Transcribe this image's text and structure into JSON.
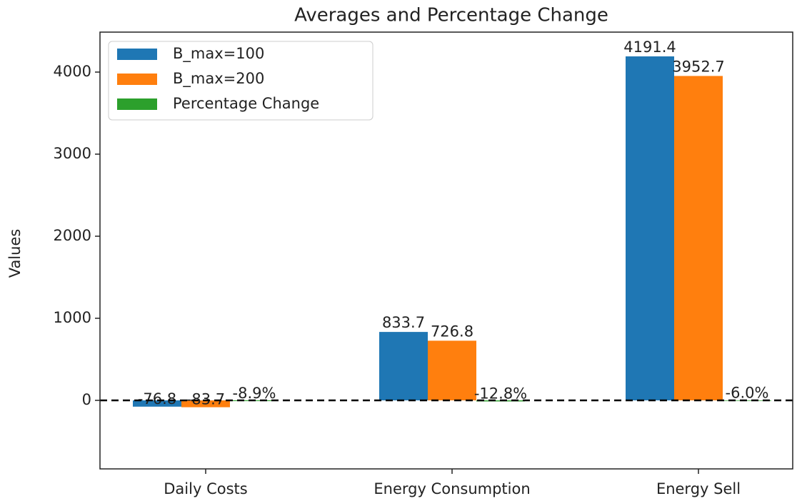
{
  "chart_data": {
    "type": "bar",
    "title": "Averages and Percentage Change",
    "ylabel": "Values",
    "categories": [
      "Daily Costs",
      "Energy Consumption",
      "Energy Sell"
    ],
    "series": [
      {
        "name": "B_max=100",
        "color": "#1f77b4",
        "values": [
          -76.8,
          833.7,
          4191.4
        ]
      },
      {
        "name": "B_max=200",
        "color": "#ff7f0e",
        "values": [
          -83.7,
          726.8,
          3952.7
        ]
      },
      {
        "name": "Percentage Change",
        "color": "#2ca02c",
        "values": [
          -8.9,
          -12.8,
          -6.0
        ],
        "value_labels": [
          "-8.9%",
          "-12.8%",
          "-6.0%"
        ]
      }
    ],
    "ylim": [
      -835,
      4487
    ],
    "yticks": [
      0,
      1000,
      2000,
      3000,
      4000
    ],
    "reference_line": 0,
    "legend": "upper left",
    "grid": false
  }
}
